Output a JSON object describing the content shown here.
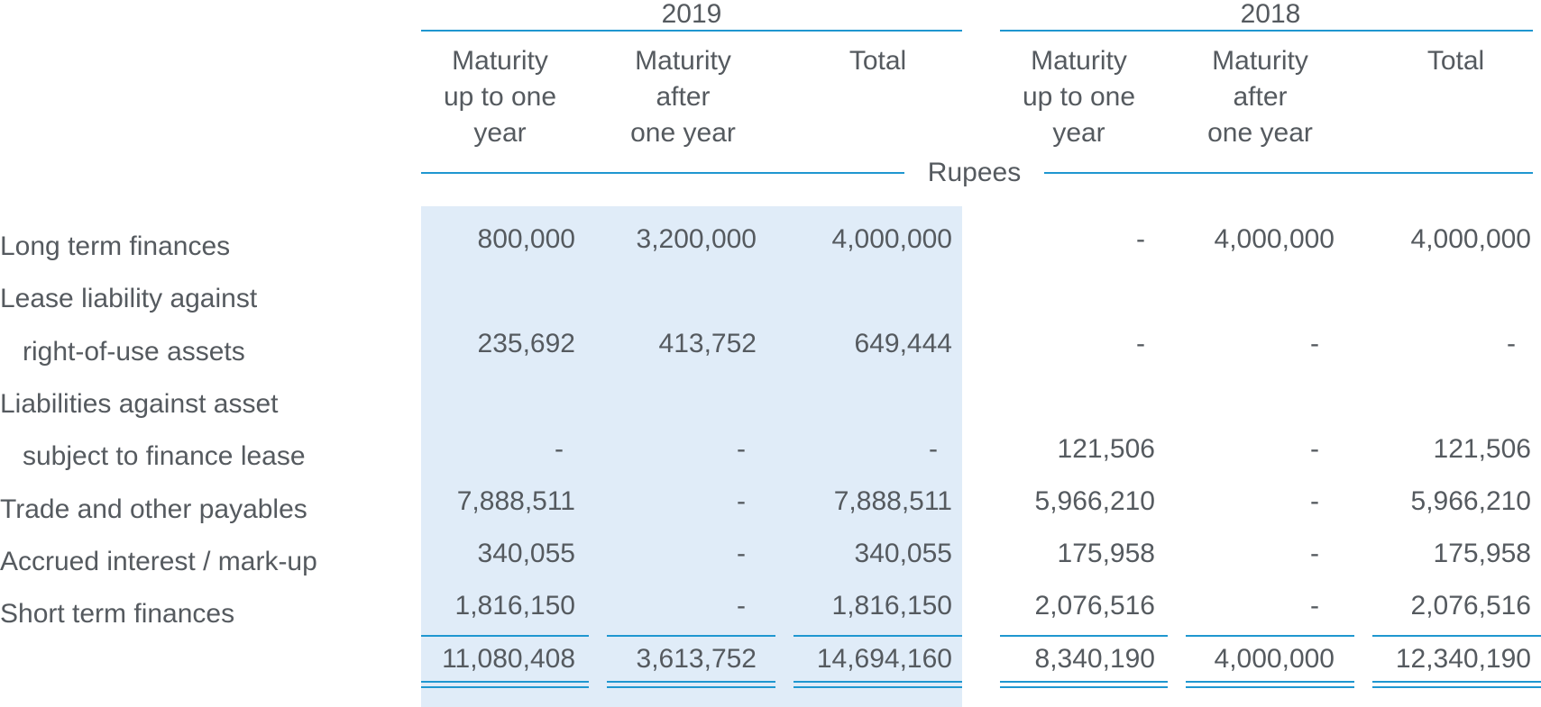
{
  "years": [
    "2019",
    "2018"
  ],
  "column_headers": {
    "up_to_one_year": "Maturity up to one year",
    "after_one_year": "Maturity after one year",
    "total": "Total"
  },
  "column_header_lines": {
    "up_to_one_year": [
      "Maturity",
      "up to one",
      "year"
    ],
    "after_one_year": [
      "Maturity",
      "after",
      "one year"
    ],
    "total": [
      "Total"
    ]
  },
  "unit": "Rupees",
  "rows": [
    {
      "label": [
        "Long term finances"
      ],
      "y2019": [
        "800,000",
        "3,200,000",
        "4,000,000"
      ],
      "y2018": [
        "-",
        "4,000,000",
        "4,000,000"
      ]
    },
    {
      "label": [
        "Lease liability against",
        "right-of-use assets"
      ],
      "y2019": [
        "235,692",
        "413,752",
        "649,444"
      ],
      "y2018": [
        "-",
        "-",
        "-"
      ]
    },
    {
      "label": [
        "Liabilities against asset",
        "subject to finance lease"
      ],
      "y2019": [
        "-",
        "-",
        "-"
      ],
      "y2018": [
        "121,506",
        "-",
        "121,506"
      ]
    },
    {
      "label": [
        "Trade and other payables"
      ],
      "y2019": [
        "7,888,511",
        "-",
        "7,888,511"
      ],
      "y2018": [
        "5,966,210",
        "-",
        "5,966,210"
      ]
    },
    {
      "label": [
        "Accrued interest / mark-up"
      ],
      "y2019": [
        "340,055",
        "-",
        "340,055"
      ],
      "y2018": [
        "175,958",
        "-",
        "175,958"
      ]
    },
    {
      "label": [
        "Short term finances"
      ],
      "y2019": [
        "1,816,150",
        "-",
        "1,816,150"
      ],
      "y2018": [
        "2,076,516",
        "-",
        "2,076,516"
      ]
    }
  ],
  "totals": {
    "y2019": [
      "11,080,408",
      "3,613,752",
      "14,694,160"
    ],
    "y2018": [
      "8,340,190",
      "4,000,000",
      "12,340,190"
    ]
  },
  "colors": {
    "rule": "#1f97d0",
    "shade": "#e0ecf8",
    "text": "#555a5f"
  }
}
